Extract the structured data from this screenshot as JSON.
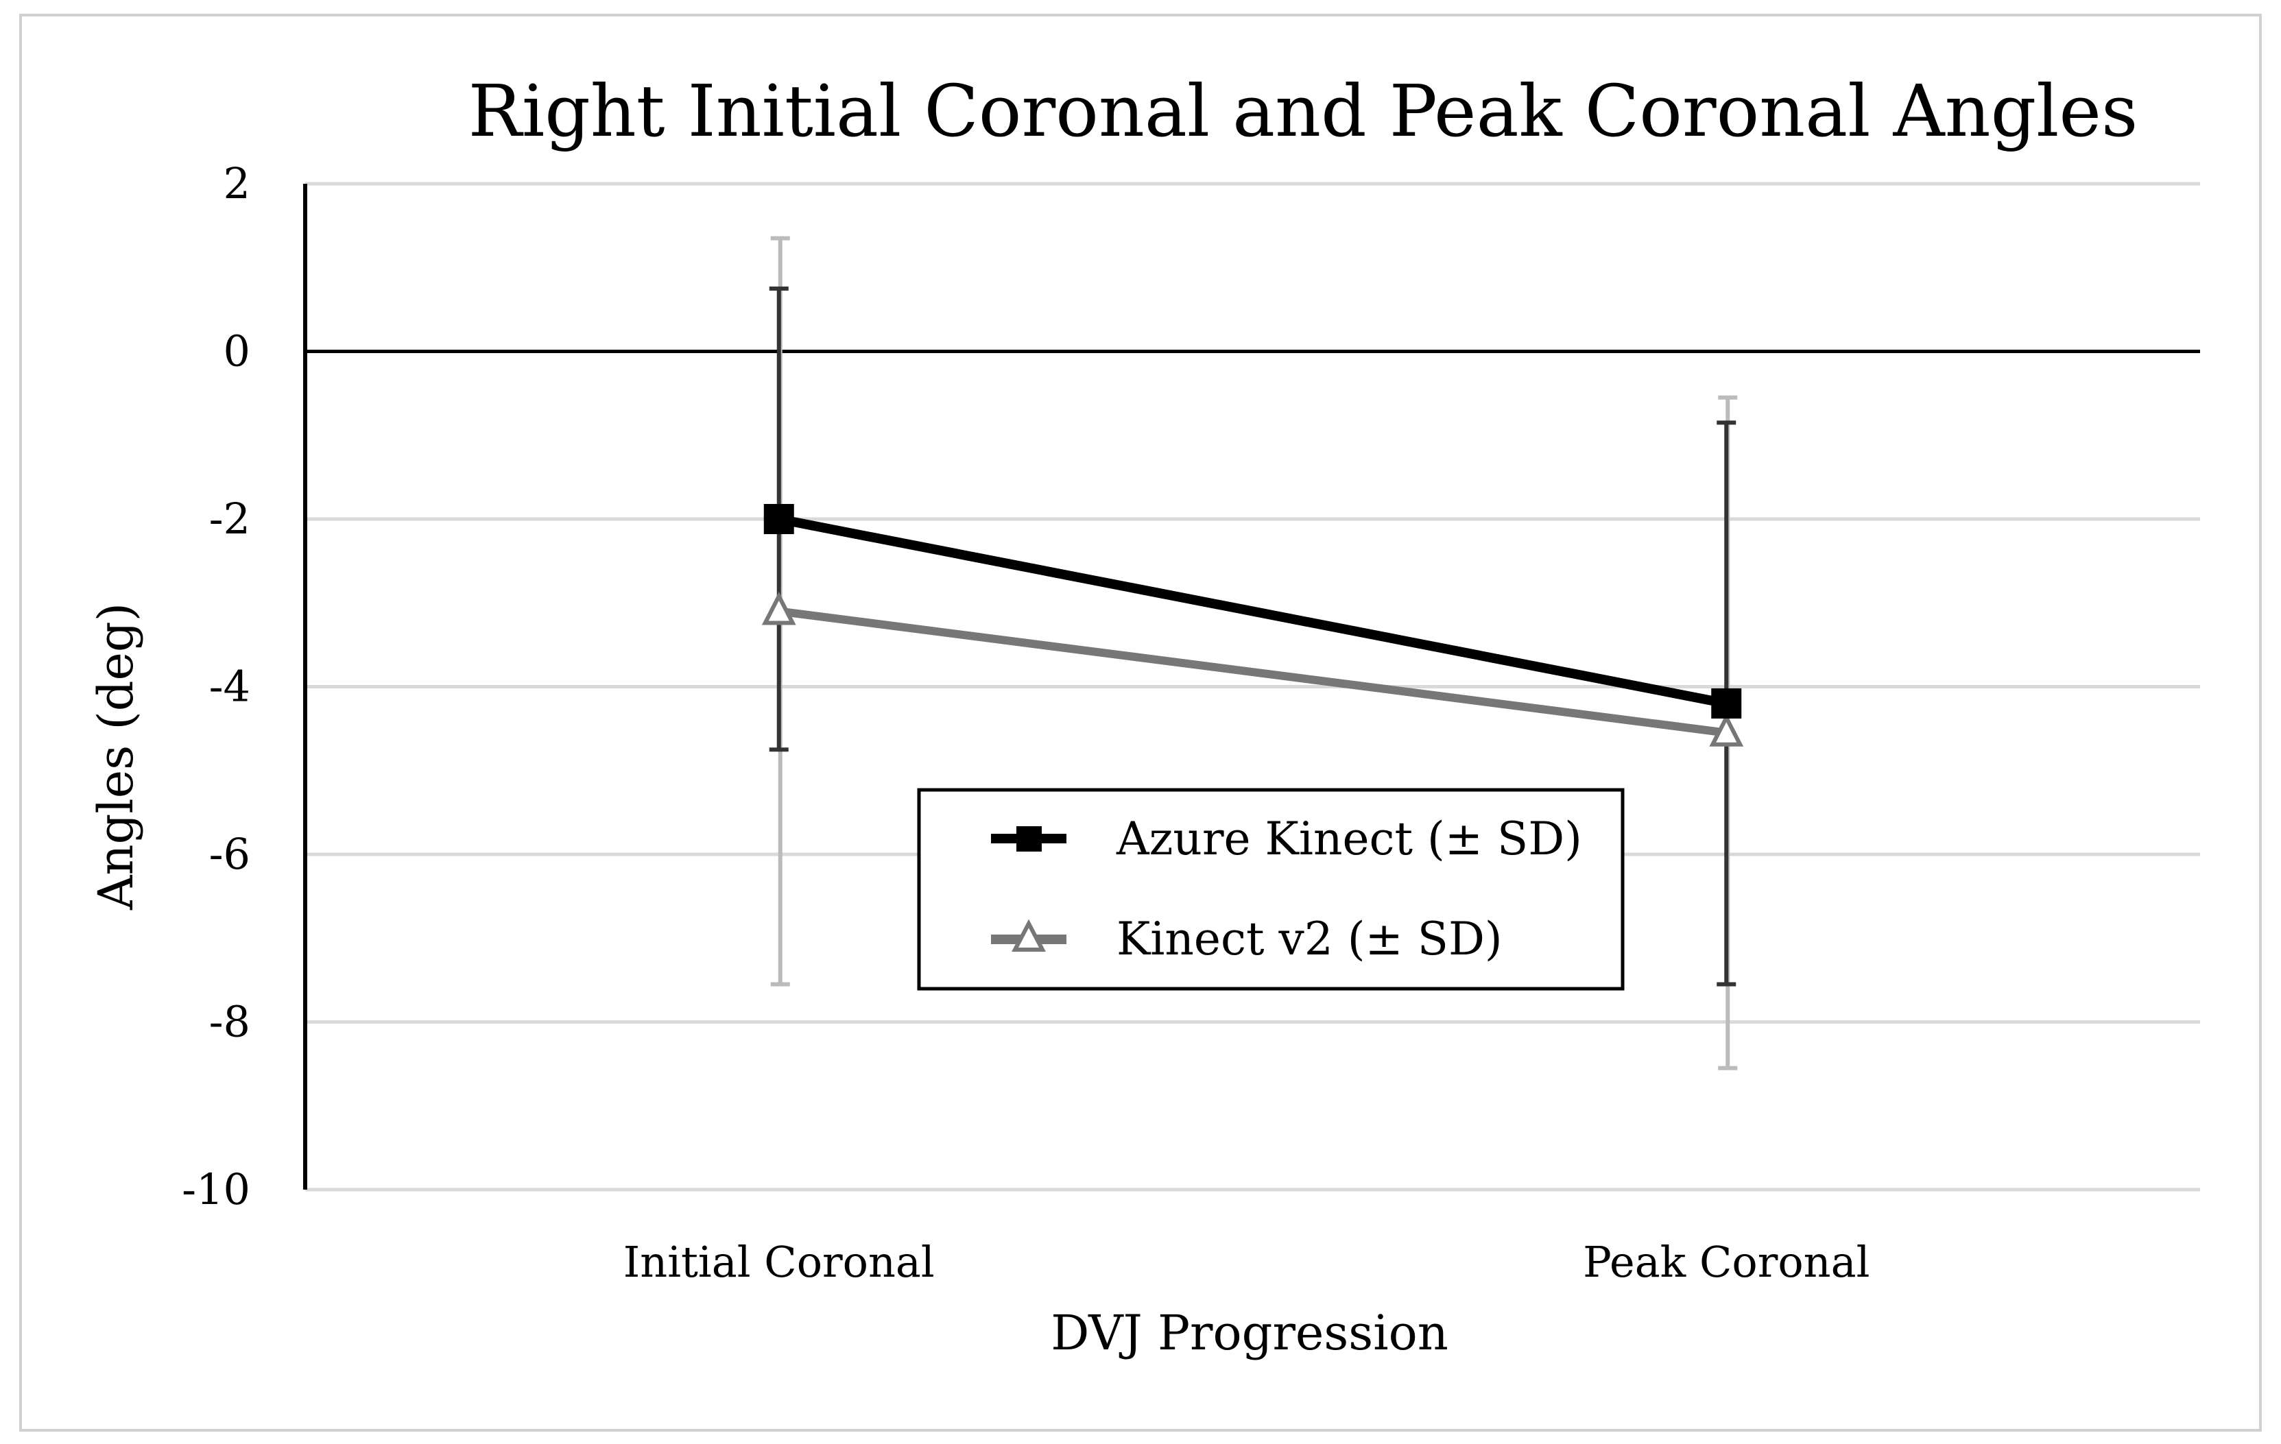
{
  "chart_data": {
    "type": "line",
    "title": "Right Initial Coronal and Peak Coronal Angles",
    "xlabel": "DVJ Progression",
    "ylabel": "Angles (deg)",
    "categories": [
      "Initial Coronal",
      "Peak Coronal"
    ],
    "ylim": [
      -10,
      2
    ],
    "yticks": [
      2,
      0,
      -2,
      -4,
      -6,
      -8,
      -10
    ],
    "ytick_labels": [
      "2",
      "0",
      "-2",
      "-4",
      "-6",
      "-8",
      "-10"
    ],
    "grid": true,
    "legend_position": "center-bottom",
    "series": [
      {
        "name": "Azure Kinect (± SD)",
        "values": [
          -2.0,
          -4.2
        ],
        "sd": [
          2.75,
          3.35
        ],
        "color": "#000000",
        "error_color": "#333333",
        "marker": "square-filled"
      },
      {
        "name": "Kinect v2 (± SD)",
        "values": [
          -3.1,
          -4.55
        ],
        "sd": [
          4.45,
          4.0
        ],
        "color": "#777777",
        "error_color": "#bbbbbb",
        "marker": "triangle-open"
      }
    ]
  }
}
